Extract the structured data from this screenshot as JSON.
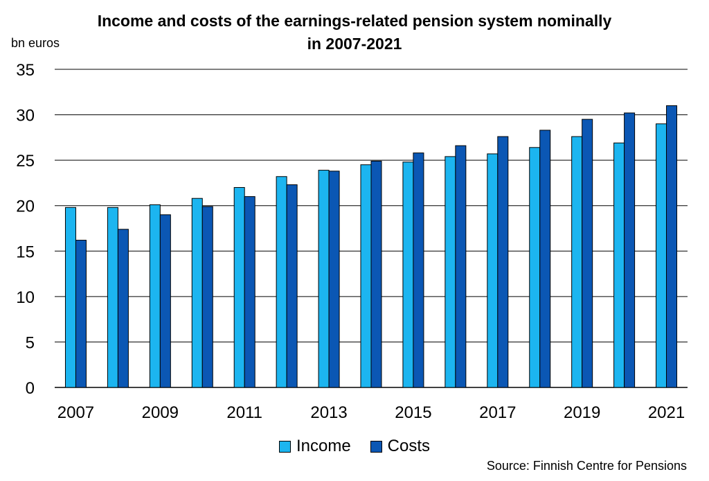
{
  "chart_data": {
    "type": "bar",
    "title_lines": [
      "Income and costs of the earnings-related pension system nominally",
      "in 2007-2021"
    ],
    "ylabel": "bn euros",
    "xlabel": "",
    "ylim": [
      0,
      35
    ],
    "yticks": [
      0,
      5,
      10,
      15,
      20,
      25,
      30,
      35
    ],
    "categories": [
      "2007",
      "2008",
      "2009",
      "2010",
      "2011",
      "2012",
      "2013",
      "2014",
      "2015",
      "2016",
      "2017",
      "2018",
      "2019",
      "2020",
      "2021"
    ],
    "xtick_labels": [
      "2007",
      "2009",
      "2011",
      "2013",
      "2015",
      "2017",
      "2019",
      "2021"
    ],
    "series": [
      {
        "name": "Income",
        "color": "#1cb5f0",
        "values": [
          19.8,
          19.8,
          20.1,
          20.8,
          22.0,
          23.2,
          23.9,
          24.5,
          24.8,
          25.4,
          25.7,
          26.4,
          27.6,
          26.9,
          29.0
        ]
      },
      {
        "name": "Costs",
        "color": "#0b57b4",
        "values": [
          16.2,
          17.4,
          19.0,
          19.9,
          21.0,
          22.3,
          23.8,
          24.9,
          25.8,
          26.6,
          27.6,
          28.3,
          29.5,
          30.2,
          31.0
        ]
      }
    ],
    "grid": true,
    "legend_position": "bottom",
    "source": "Source: Finnish Centre for Pensions"
  }
}
